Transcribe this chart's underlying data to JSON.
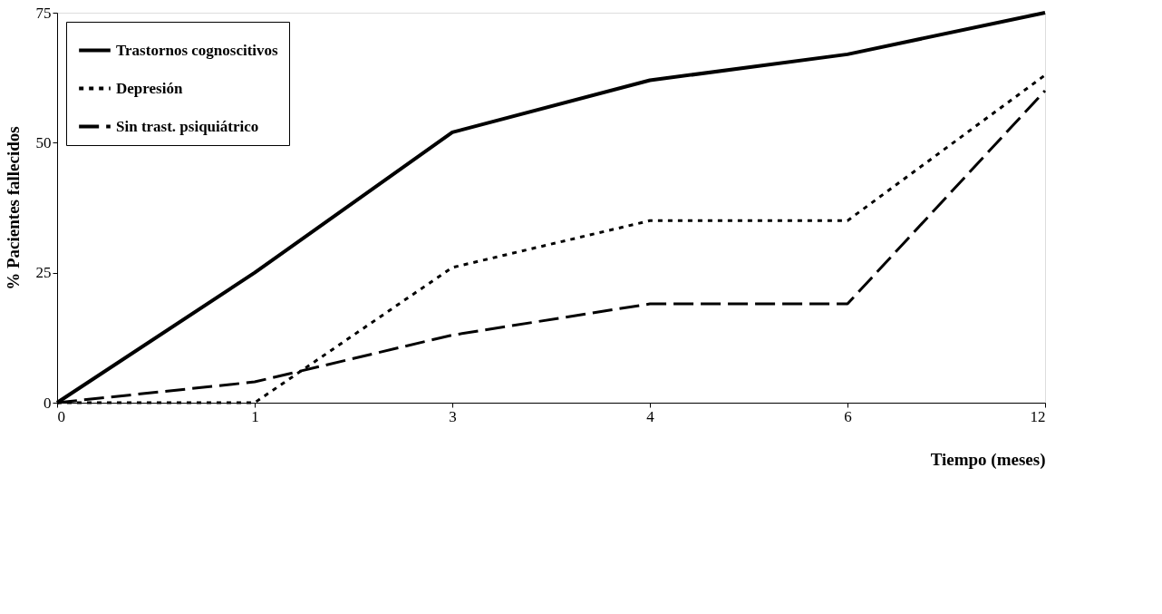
{
  "chart_data": {
    "type": "line",
    "xlabel": "Tiempo (meses)",
    "ylabel": "% Pacientes fallecidos",
    "categories": [
      "0",
      "1",
      "3",
      "4",
      "6",
      "12"
    ],
    "series": [
      {
        "name": "Trastornos cognoscitivos",
        "color": "#000000",
        "line_style": "solid",
        "values": [
          0,
          25,
          52,
          62,
          67,
          75
        ]
      },
      {
        "name": "Depresión",
        "color": "#000000",
        "line_style": "dotted",
        "values": [
          0,
          0,
          26,
          35,
          35,
          63
        ]
      },
      {
        "name": "Sin trast. psiquiátrico",
        "color": "#000000",
        "line_style": "dashed",
        "values": [
          0,
          4,
          13,
          19,
          19,
          60
        ]
      }
    ],
    "ylim": [
      0,
      75
    ],
    "yticks": [
      0,
      25,
      50,
      75
    ],
    "grid": false,
    "legend": "top left",
    "marker": "none"
  }
}
